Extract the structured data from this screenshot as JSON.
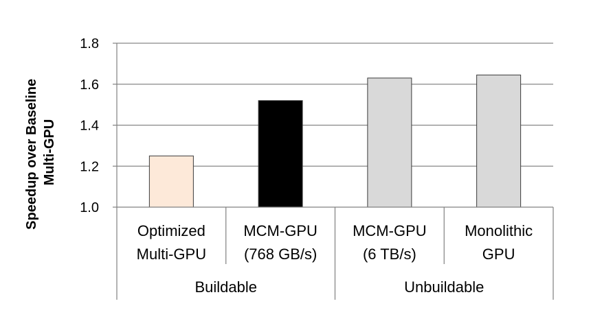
{
  "chart_data": {
    "type": "bar",
    "title": "",
    "xlabel": "",
    "ylabel_lines": [
      "Speedup over Baseline",
      "Multi-GPU"
    ],
    "ylim": [
      1.0,
      1.8
    ],
    "yticks": [
      1.0,
      1.2,
      1.4,
      1.6,
      1.8
    ],
    "ytick_labels": [
      "1.0",
      "1.2",
      "1.4",
      "1.6",
      "1.8"
    ],
    "grid": true,
    "categories": [
      {
        "lines": [
          "Optimized",
          "Multi-GPU"
        ],
        "value": 1.25,
        "color": "#fde9d9"
      },
      {
        "lines": [
          "MCM-GPU",
          "(768 GB/s)"
        ],
        "value": 1.52,
        "color": "#000000"
      },
      {
        "lines": [
          "MCM-GPU",
          "(6 TB/s)"
        ],
        "value": 1.63,
        "color": "#d9d9d9"
      },
      {
        "lines": [
          "Monolithic",
          "GPU"
        ],
        "value": 1.645,
        "color": "#d9d9d9"
      }
    ],
    "groups": [
      {
        "label": "Buildable",
        "span": [
          0,
          1
        ]
      },
      {
        "label": "Unbuildable",
        "span": [
          2,
          3
        ]
      }
    ]
  },
  "colors": {
    "axis": "#808080",
    "grid": "#868686",
    "bar_edge": "#3a3a3a"
  }
}
